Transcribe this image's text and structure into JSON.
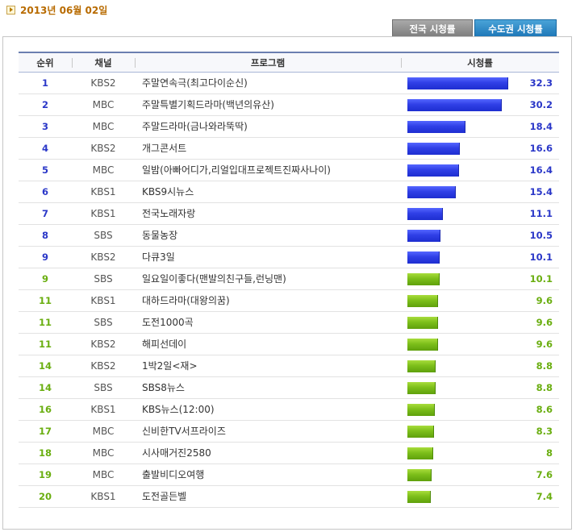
{
  "header": {
    "date": "2013년 06월 02일",
    "date_icon": "arrow-right-icon"
  },
  "tabs": [
    {
      "label": "전국 시청률",
      "active": false
    },
    {
      "label": "수도권 시청률",
      "active": true
    }
  ],
  "table": {
    "columns": [
      "순위",
      "채널",
      "프로그램",
      "시청률"
    ],
    "rows": [
      {
        "rank": "1",
        "channel": "KBS2",
        "program": "주말연속극(최고다이순신)",
        "rating": 32.3,
        "color": "blue"
      },
      {
        "rank": "2",
        "channel": "MBC",
        "program": "주말특별기획드라마(백년의유산)",
        "rating": 30.2,
        "color": "blue"
      },
      {
        "rank": "3",
        "channel": "MBC",
        "program": "주말드라마(금나와라뚝딱)",
        "rating": 18.4,
        "color": "blue"
      },
      {
        "rank": "4",
        "channel": "KBS2",
        "program": "개그콘서트",
        "rating": 16.6,
        "color": "blue"
      },
      {
        "rank": "5",
        "channel": "MBC",
        "program": "일밤(아빠어디가,리얼입대프로젝트진짜사나이)",
        "rating": 16.4,
        "color": "blue"
      },
      {
        "rank": "6",
        "channel": "KBS1",
        "program": "KBS9시뉴스",
        "rating": 15.4,
        "color": "blue"
      },
      {
        "rank": "7",
        "channel": "KBS1",
        "program": "전국노래자랑",
        "rating": 11.1,
        "color": "blue"
      },
      {
        "rank": "8",
        "channel": "SBS",
        "program": "동물농장",
        "rating": 10.5,
        "color": "blue"
      },
      {
        "rank": "9",
        "channel": "KBS2",
        "program": "다큐3일",
        "rating": 10.1,
        "color": "blue"
      },
      {
        "rank": "9",
        "channel": "SBS",
        "program": "일요일이좋다(맨발의친구들,런닝맨)",
        "rating": 10.1,
        "color": "green"
      },
      {
        "rank": "11",
        "channel": "KBS1",
        "program": "대하드라마(대왕의꿈)",
        "rating": 9.6,
        "color": "green"
      },
      {
        "rank": "11",
        "channel": "SBS",
        "program": "도전1000곡",
        "rating": 9.6,
        "color": "green"
      },
      {
        "rank": "11",
        "channel": "KBS2",
        "program": "해피선데이",
        "rating": 9.6,
        "color": "green"
      },
      {
        "rank": "14",
        "channel": "KBS2",
        "program": "1박2일<재>",
        "rating": 8.8,
        "color": "green"
      },
      {
        "rank": "14",
        "channel": "SBS",
        "program": "SBS8뉴스",
        "rating": 8.8,
        "color": "green"
      },
      {
        "rank": "16",
        "channel": "KBS1",
        "program": "KBS뉴스(12:00)",
        "rating": 8.6,
        "color": "green"
      },
      {
        "rank": "17",
        "channel": "MBC",
        "program": "신비한TV서프라이즈",
        "rating": 8.3,
        "color": "green"
      },
      {
        "rank": "18",
        "channel": "MBC",
        "program": "시사매거진2580",
        "rating": 8,
        "color": "green"
      },
      {
        "rank": "19",
        "channel": "MBC",
        "program": "출발비디오여행",
        "rating": 7.6,
        "color": "green"
      },
      {
        "rank": "20",
        "channel": "KBS1",
        "program": "도전골든벨",
        "rating": 7.4,
        "color": "green"
      }
    ]
  },
  "colors": {
    "blue": "#2a37c8",
    "green": "#6aae10",
    "date": "#b86b00"
  }
}
